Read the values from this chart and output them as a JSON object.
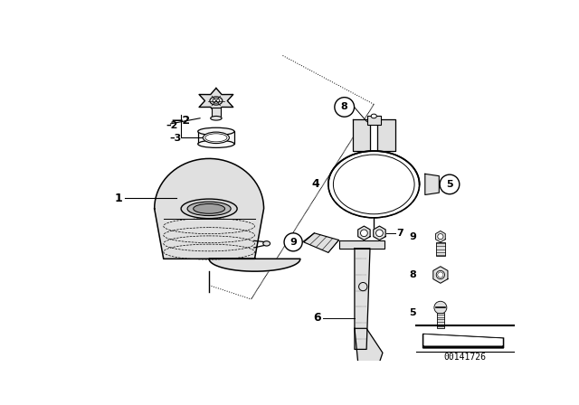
{
  "bg_color": "#ffffff",
  "diagram_id": "00141726",
  "line_color": "#000000",
  "fill_light": "#e0e0e0",
  "fill_mid": "#cccccc"
}
